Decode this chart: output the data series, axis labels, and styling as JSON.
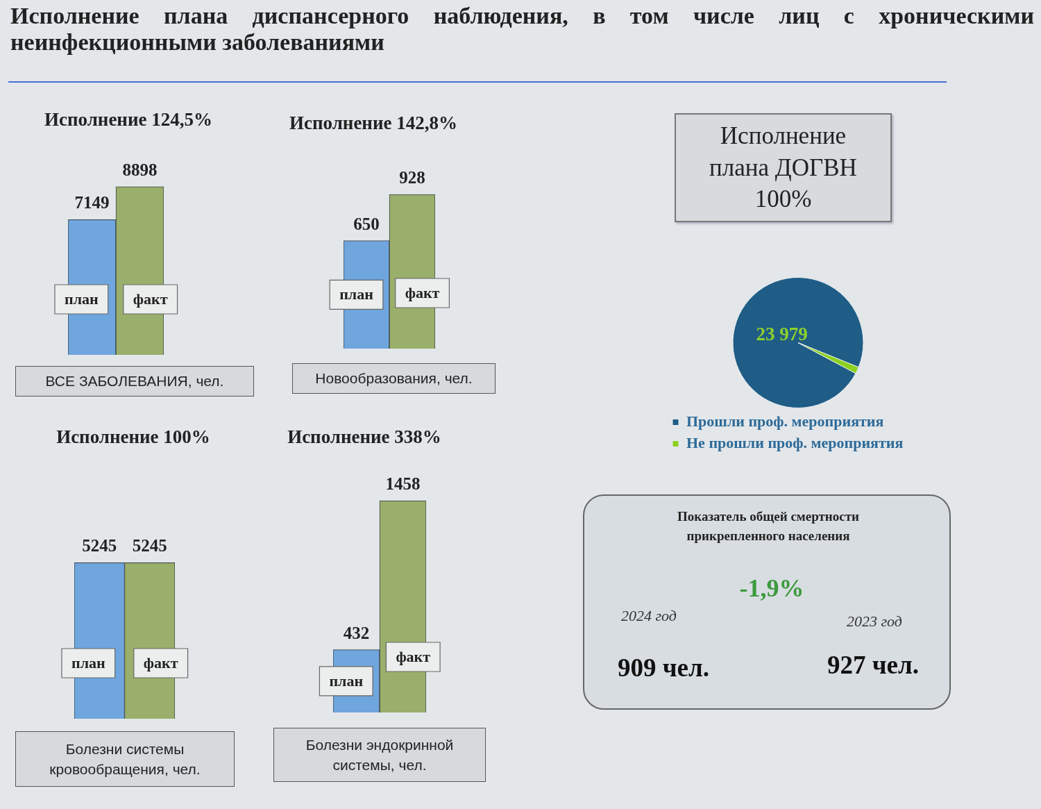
{
  "chart_data": [
    {
      "type": "other",
      "title": "Исполнение плана диспансерного наблюдения, в том числе лиц с хроническими неинфекционными заболеваниями"
    },
    {
      "type": "bar",
      "title": "Исполнение 124,5%",
      "xlabel": "ВСЕ ЗАБОЛЕВАНИЯ, чел.",
      "categories": [
        "план",
        "факт"
      ],
      "values": [
        7149,
        8898
      ],
      "colors": [
        "#6fa6dd",
        "#9aaf6b"
      ],
      "data_labels": true,
      "tick_labels": "x"
    },
    {
      "type": "bar",
      "title": "Исполнение 142,8%",
      "xlabel": "Новообразования, чел.",
      "categories": [
        "план",
        "факт"
      ],
      "values": [
        650,
        928
      ],
      "colors": [
        "#6fa6dd",
        "#9aaf6b"
      ],
      "data_labels": true,
      "tick_labels": "x"
    },
    {
      "type": "other",
      "title": "Исполнение плана ДОГВН 100%"
    },
    {
      "type": "pie",
      "categories": [
        "Прошли проф. мероприятия",
        "Не прошли проф. мероприятия"
      ],
      "values": [
        23979,
        400
      ],
      "colors": [
        "#1f5d86",
        "#8cd11f"
      ],
      "value_labels": [
        "23 979",
        null
      ],
      "legend": "bottom"
    },
    {
      "type": "bar",
      "title": "Исполнение 100%",
      "xlabel": "Болезни системы кровообращения, чел.",
      "categories": [
        "план",
        "факт"
      ],
      "values": [
        5245,
        5245
      ],
      "colors": [
        "#6fa6dd",
        "#9aaf6b"
      ],
      "data_labels": true,
      "tick_labels": "x"
    },
    {
      "type": "bar",
      "title": "Исполнение 338%",
      "xlabel": "Болезни эндокринной системы, чел.",
      "categories": [
        "план",
        "факт"
      ],
      "values": [
        432,
        1458
      ],
      "colors": [
        "#6fa6dd",
        "#9aaf6b"
      ],
      "data_labels": true,
      "tick_labels": "x"
    },
    {
      "type": "other",
      "title": "Показатель общей смертности прикрепленного населения",
      "annotations": [
        "-1,9%",
        "2024 год",
        "909 чел.",
        "2023 год",
        "927 чел."
      ]
    }
  ]
}
